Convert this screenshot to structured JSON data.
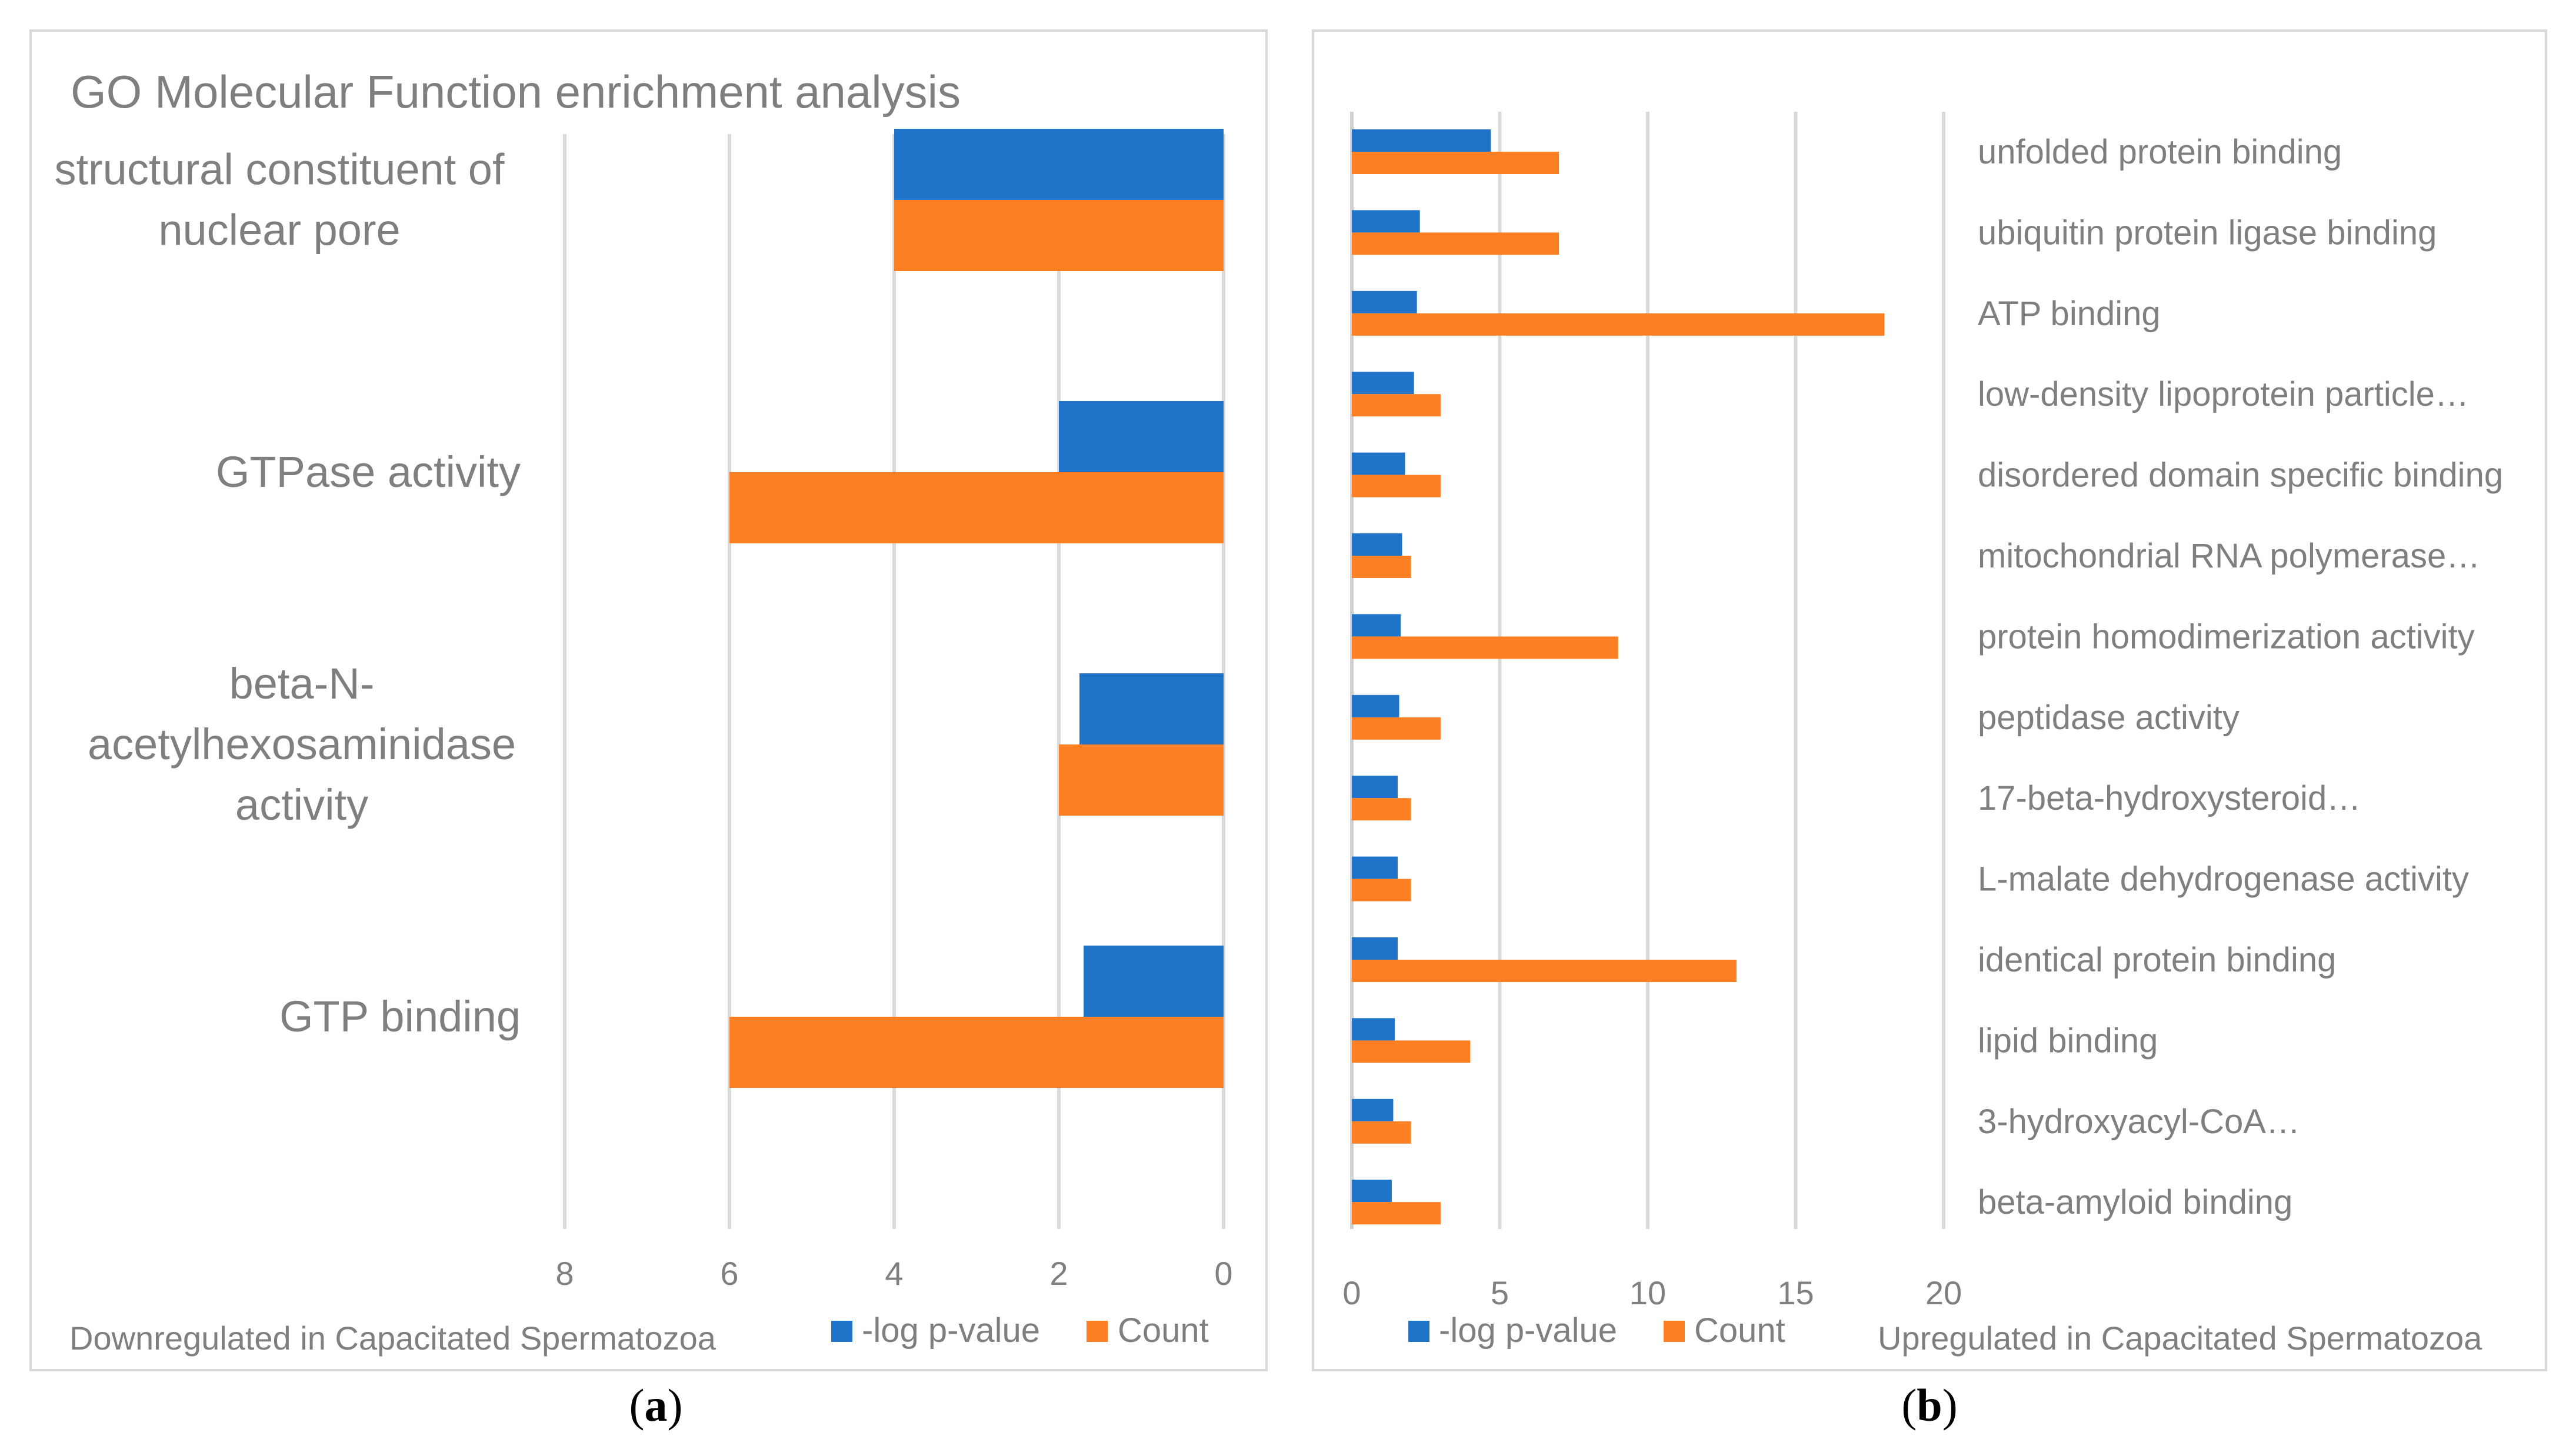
{
  "colors": {
    "neglog": "#1f73c9",
    "count": "#fd7f23",
    "grid": "#d9d9d9",
    "text": "#7f7f7f"
  },
  "panel_labels": {
    "a": "(a)",
    "b": "(b)"
  },
  "panel_label_letters": {
    "a": "a",
    "b": "b"
  },
  "chart_data": [
    {
      "type": "bar",
      "orientation": "horizontal",
      "x_reversed": true,
      "title": "GO Molecular Function enrichment analysis",
      "xlabel": "Downregulated in Capacitated Spermatozoa",
      "xlim": [
        0,
        8
      ],
      "xticks": [
        8,
        6,
        4,
        2,
        0
      ],
      "legend": [
        "-log p-value",
        "Count"
      ],
      "categories": [
        {
          "label_lines": [
            "structural constituent of",
            "nuclear pore"
          ]
        },
        {
          "label_lines": [
            "GTPase activity"
          ]
        },
        {
          "label_lines": [
            "beta-N-",
            "acetylhexosaminidase",
            "activity"
          ]
        },
        {
          "label_lines": [
            "GTP binding"
          ]
        }
      ],
      "series": [
        {
          "name": "-log p-value",
          "values": [
            4.0,
            2.0,
            1.75,
            1.7
          ]
        },
        {
          "name": "Count",
          "values": [
            4,
            6,
            2,
            6
          ]
        }
      ]
    },
    {
      "type": "bar",
      "orientation": "horizontal",
      "xlabel": "Upregulated in Capacitated Spermatozoa",
      "xlim": [
        0,
        20
      ],
      "xticks": [
        0,
        5,
        10,
        15,
        20
      ],
      "legend": [
        "-log p-value",
        "Count"
      ],
      "categories": [
        "unfolded protein binding",
        "ubiquitin protein ligase binding",
        "ATP binding",
        "low-density lipoprotein particle…",
        "disordered domain specific binding",
        "mitochondrial RNA polymerase…",
        "protein homodimerization activity",
        "peptidase activity",
        "17-beta-hydroxysteroid…",
        "L-malate dehydrogenase activity",
        "identical protein binding",
        "lipid binding",
        "3-hydroxyacyl-CoA…",
        "beta-amyloid binding"
      ],
      "series": [
        {
          "name": "-log p-value",
          "values": [
            4.7,
            2.3,
            2.2,
            2.1,
            1.8,
            1.7,
            1.65,
            1.6,
            1.55,
            1.55,
            1.55,
            1.45,
            1.4,
            1.35
          ]
        },
        {
          "name": "Count",
          "values": [
            7,
            7,
            18,
            3,
            3,
            2,
            9,
            3,
            2,
            2,
            13,
            4,
            2,
            3
          ]
        }
      ]
    }
  ]
}
